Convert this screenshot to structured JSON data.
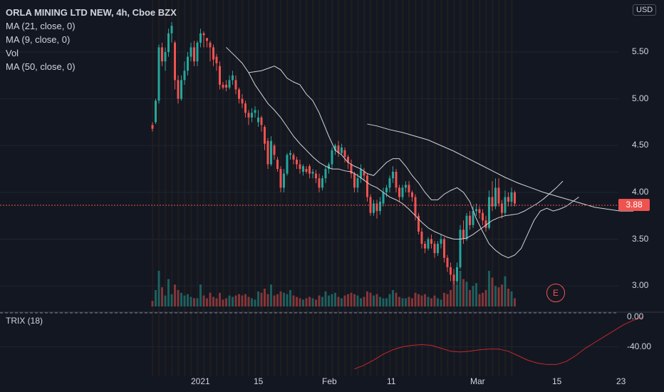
{
  "header": {
    "symbol_title": "ORLA MINING LTD NEW, 4h, Cboe BZX",
    "currency": "USD"
  },
  "legend": {
    "ma21": "MA (21, close, 0)",
    "ma9": "MA (9, close, 0)",
    "vol": "Vol",
    "ma50": "MA (50, close, 0)"
  },
  "trix": {
    "label": "TRIX (18)"
  },
  "last_price": {
    "label": "3.88",
    "color": "#ef5350"
  },
  "earnings_badge": {
    "label": "E"
  },
  "colors": {
    "up": "#26a69a",
    "down": "#ef5350",
    "ma": "#d1d4dc",
    "trix": "#c62828",
    "background": "#131722"
  },
  "chart_data": {
    "type": "candlestick",
    "price_axis": {
      "ticks": [
        "5.50",
        "5.00",
        "4.50",
        "4.00",
        "3.50",
        "3.00"
      ],
      "range": [
        2.78,
        5.98
      ]
    },
    "trix_axis": {
      "ticks": [
        "0.00",
        "-40.00"
      ],
      "range": [
        -80,
        5
      ]
    },
    "time_axis": {
      "ticks": [
        "2021",
        "15",
        "Feb",
        "11",
        "Mar",
        "15",
        "23"
      ]
    },
    "candles": [
      [
        4.72,
        4.68,
        4.65,
        4.75,
        40
      ],
      [
        4.75,
        4.98,
        4.73,
        5.0,
        120
      ],
      [
        4.98,
        5.55,
        4.95,
        5.58,
        260
      ],
      [
        5.55,
        5.4,
        5.35,
        5.6,
        140
      ],
      [
        5.4,
        5.5,
        5.3,
        5.55,
        80
      ],
      [
        5.5,
        5.7,
        5.45,
        5.75,
        200
      ],
      [
        5.7,
        5.78,
        5.6,
        5.82,
        90
      ],
      [
        5.6,
        5.2,
        5.1,
        5.62,
        160
      ],
      [
        5.2,
        5.0,
        4.95,
        5.25,
        120
      ],
      [
        5.0,
        5.2,
        4.98,
        5.25,
        100
      ],
      [
        5.2,
        5.3,
        5.15,
        5.4,
        80
      ],
      [
        5.3,
        5.45,
        5.25,
        5.5,
        90
      ],
      [
        5.45,
        5.55,
        5.4,
        5.6,
        70
      ],
      [
        5.55,
        5.4,
        5.35,
        5.62,
        60
      ],
      [
        5.4,
        5.6,
        5.35,
        5.62,
        60
      ],
      [
        5.6,
        5.7,
        5.55,
        5.75,
        160
      ],
      [
        5.7,
        5.68,
        5.55,
        5.72,
        80
      ],
      [
        5.65,
        5.62,
        5.55,
        5.65,
        60
      ],
      [
        5.6,
        5.55,
        5.4,
        5.62,
        100
      ],
      [
        5.55,
        5.42,
        5.35,
        5.58,
        70
      ],
      [
        5.45,
        5.38,
        5.3,
        5.48,
        60
      ],
      [
        5.35,
        5.15,
        5.1,
        5.4,
        100
      ],
      [
        5.15,
        5.12,
        5.1,
        5.18,
        50
      ],
      [
        5.15,
        5.12,
        5.08,
        5.2,
        60
      ],
      [
        5.12,
        5.2,
        5.1,
        5.25,
        80
      ],
      [
        5.2,
        5.25,
        5.15,
        5.3,
        70
      ],
      [
        5.2,
        5.1,
        5.05,
        5.25,
        80
      ],
      [
        5.1,
        5.0,
        4.95,
        5.12,
        90
      ],
      [
        5.0,
        4.95,
        4.9,
        5.05,
        80
      ],
      [
        4.95,
        4.85,
        4.8,
        4.98,
        90
      ],
      [
        4.85,
        4.8,
        4.72,
        4.88,
        70
      ],
      [
        4.8,
        4.85,
        4.75,
        4.9,
        60
      ],
      [
        4.85,
        4.88,
        4.8,
        4.92,
        50
      ],
      [
        4.75,
        4.8,
        4.7,
        4.88,
        110
      ],
      [
        4.8,
        4.72,
        4.65,
        4.82,
        100
      ],
      [
        4.7,
        4.52,
        4.45,
        4.72,
        130
      ],
      [
        4.55,
        4.3,
        4.25,
        4.58,
        90
      ],
      [
        4.3,
        4.55,
        4.28,
        4.6,
        160
      ],
      [
        4.5,
        4.4,
        4.35,
        4.52,
        80
      ],
      [
        4.35,
        4.25,
        4.22,
        4.38,
        90
      ],
      [
        4.25,
        4.05,
        4.0,
        4.28,
        110
      ],
      [
        4.05,
        4.2,
        4.0,
        4.25,
        100
      ],
      [
        4.2,
        4.4,
        4.18,
        4.42,
        90
      ],
      [
        4.4,
        4.42,
        4.35,
        4.45,
        120
      ],
      [
        4.4,
        4.35,
        4.3,
        4.42,
        80
      ],
      [
        4.35,
        4.3,
        4.25,
        4.38,
        70
      ],
      [
        4.3,
        4.25,
        4.2,
        4.35,
        60
      ],
      [
        4.22,
        4.28,
        4.18,
        4.3,
        50
      ],
      [
        4.25,
        4.22,
        4.2,
        4.28,
        60
      ],
      [
        4.28,
        4.2,
        4.15,
        4.3,
        70
      ],
      [
        4.2,
        4.22,
        4.15,
        4.25,
        60
      ],
      [
        4.2,
        4.15,
        4.1,
        4.24,
        50
      ],
      [
        4.15,
        4.05,
        4.0,
        4.2,
        80
      ],
      [
        4.05,
        4.15,
        4.02,
        4.18,
        70
      ],
      [
        4.15,
        4.25,
        4.1,
        4.28,
        110
      ],
      [
        4.25,
        4.3,
        4.2,
        4.32,
        80
      ],
      [
        4.3,
        4.45,
        4.25,
        4.48,
        90
      ],
      [
        4.45,
        4.5,
        4.4,
        4.52,
        100
      ],
      [
        4.5,
        4.42,
        4.38,
        4.55,
        70
      ],
      [
        4.42,
        4.48,
        4.4,
        4.52,
        60
      ],
      [
        4.45,
        4.38,
        4.32,
        4.48,
        80
      ],
      [
        4.38,
        4.32,
        4.25,
        4.4,
        90
      ],
      [
        4.3,
        4.2,
        4.15,
        4.35,
        100
      ],
      [
        4.2,
        4.05,
        4.0,
        4.22,
        90
      ],
      [
        4.05,
        4.15,
        4.0,
        4.2,
        80
      ],
      [
        4.15,
        4.25,
        4.1,
        4.3,
        60
      ],
      [
        4.22,
        4.18,
        4.12,
        4.26,
        70
      ],
      [
        4.18,
        3.95,
        3.9,
        4.2,
        110
      ],
      [
        3.95,
        3.78,
        3.75,
        3.98,
        100
      ],
      [
        3.78,
        3.88,
        3.75,
        3.92,
        80
      ],
      [
        3.88,
        3.8,
        3.72,
        3.92,
        90
      ],
      [
        3.8,
        3.9,
        3.76,
        3.95,
        70
      ],
      [
        3.88,
        4.0,
        3.85,
        4.05,
        60
      ],
      [
        4.0,
        4.05,
        3.95,
        4.08,
        60
      ],
      [
        4.05,
        4.15,
        4.0,
        4.18,
        90
      ],
      [
        4.15,
        4.22,
        4.1,
        4.28,
        120
      ],
      [
        4.22,
        4.05,
        4.0,
        4.25,
        100
      ],
      [
        4.05,
        3.95,
        3.9,
        4.08,
        70
      ],
      [
        3.95,
        4.05,
        3.92,
        4.08,
        60
      ],
      [
        4.05,
        4.08,
        4.0,
        4.12,
        60
      ],
      [
        4.08,
        4.0,
        3.95,
        4.12,
        70
      ],
      [
        4.0,
        3.95,
        3.9,
        4.02,
        60
      ],
      [
        3.95,
        3.75,
        3.7,
        3.98,
        100
      ],
      [
        3.75,
        3.58,
        3.55,
        3.78,
        90
      ],
      [
        3.58,
        3.45,
        3.4,
        3.62,
        80
      ],
      [
        3.45,
        3.4,
        3.35,
        3.48,
        90
      ],
      [
        3.4,
        3.5,
        3.38,
        3.52,
        70
      ],
      [
        3.5,
        3.45,
        3.4,
        3.55,
        60
      ],
      [
        3.45,
        3.35,
        3.3,
        3.48,
        80
      ],
      [
        3.35,
        3.45,
        3.32,
        3.48,
        60
      ],
      [
        3.45,
        3.5,
        3.4,
        3.55,
        50
      ],
      [
        3.5,
        3.3,
        3.25,
        3.52,
        100
      ],
      [
        3.3,
        3.2,
        3.15,
        3.33,
        90
      ],
      [
        3.2,
        3.12,
        3.05,
        3.25,
        120
      ],
      [
        3.12,
        3.05,
        3.02,
        3.18,
        180
      ],
      [
        3.05,
        3.2,
        3.02,
        3.25,
        160
      ],
      [
        3.2,
        3.6,
        3.18,
        3.65,
        260
      ],
      [
        3.6,
        3.5,
        3.45,
        3.7,
        200
      ],
      [
        3.5,
        3.75,
        3.48,
        3.78,
        180
      ],
      [
        3.75,
        3.65,
        3.6,
        3.8,
        120
      ],
      [
        3.65,
        3.8,
        3.62,
        3.85,
        150
      ],
      [
        3.8,
        3.82,
        3.75,
        3.88,
        170
      ],
      [
        3.82,
        3.78,
        3.72,
        3.85,
        90
      ],
      [
        3.78,
        3.7,
        3.65,
        3.82,
        100
      ],
      [
        3.7,
        3.62,
        3.58,
        3.75,
        120
      ],
      [
        3.62,
        3.95,
        3.6,
        4.02,
        260
      ],
      [
        3.95,
        3.85,
        3.8,
        4.12,
        210
      ],
      [
        3.85,
        4.05,
        3.82,
        4.15,
        150
      ],
      [
        4.05,
        3.88,
        3.85,
        4.15,
        140
      ],
      [
        3.88,
        3.78,
        3.72,
        3.92,
        160
      ],
      [
        3.78,
        3.95,
        3.75,
        4.02,
        220
      ],
      [
        3.95,
        3.9,
        3.85,
        4.0,
        130
      ],
      [
        3.9,
        4.0,
        3.85,
        4.05,
        110
      ],
      [
        4.0,
        3.88,
        3.85,
        4.02,
        60
      ]
    ],
    "ma9": [
      [
        30,
        5.28
      ],
      [
        34,
        5.3
      ],
      [
        38,
        5.35
      ],
      [
        40,
        5.31
      ],
      [
        42,
        5.22
      ],
      [
        44,
        5.18
      ],
      [
        46,
        5.15
      ],
      [
        48,
        5.05
      ],
      [
        50,
        4.98
      ],
      [
        52,
        4.85
      ],
      [
        55,
        4.6
      ],
      [
        57,
        4.45
      ],
      [
        59,
        4.4
      ],
      [
        61,
        4.32
      ],
      [
        63,
        4.28
      ],
      [
        65,
        4.25
      ],
      [
        67,
        4.2
      ],
      [
        69,
        4.18
      ],
      [
        71,
        4.25
      ],
      [
        73,
        4.32
      ],
      [
        75,
        4.36
      ],
      [
        77,
        4.36
      ],
      [
        79,
        4.28
      ],
      [
        81,
        4.18
      ],
      [
        83,
        4.1
      ],
      [
        85,
        4.0
      ],
      [
        87,
        3.92
      ],
      [
        89,
        3.92
      ],
      [
        91,
        3.98
      ],
      [
        93,
        4.02
      ],
      [
        95,
        4.05
      ],
      [
        97,
        4.0
      ],
      [
        99,
        3.9
      ],
      [
        101,
        3.72
      ],
      [
        103,
        3.58
      ],
      [
        105,
        3.45
      ],
      [
        107,
        3.38
      ],
      [
        109,
        3.33
      ],
      [
        111,
        3.3
      ],
      [
        113,
        3.33
      ],
      [
        115,
        3.4
      ],
      [
        117,
        3.55
      ],
      [
        119,
        3.7
      ],
      [
        121,
        3.8
      ],
      [
        123,
        3.83
      ],
      [
        125,
        3.8
      ],
      [
        127,
        3.82
      ],
      [
        129,
        3.85
      ],
      [
        131,
        3.9
      ],
      [
        133,
        3.95
      ]
    ],
    "ma21": [
      [
        23,
        5.55
      ],
      [
        26,
        5.45
      ],
      [
        28,
        5.38
      ],
      [
        30,
        5.28
      ],
      [
        32,
        5.15
      ],
      [
        34,
        5.05
      ],
      [
        36,
        4.95
      ],
      [
        38,
        4.88
      ],
      [
        40,
        4.8
      ],
      [
        42,
        4.7
      ],
      [
        44,
        4.6
      ],
      [
        46,
        4.52
      ],
      [
        48,
        4.45
      ],
      [
        50,
        4.38
      ],
      [
        52,
        4.32
      ],
      [
        54,
        4.28
      ],
      [
        56,
        4.25
      ],
      [
        58,
        4.25
      ],
      [
        60,
        4.23
      ],
      [
        62,
        4.22
      ],
      [
        64,
        4.18
      ],
      [
        66,
        4.13
      ],
      [
        68,
        4.08
      ],
      [
        70,
        4.05
      ],
      [
        72,
        4.0
      ],
      [
        74,
        3.95
      ],
      [
        76,
        3.92
      ],
      [
        78,
        3.88
      ],
      [
        80,
        3.82
      ],
      [
        82,
        3.75
      ],
      [
        84,
        3.68
      ],
      [
        86,
        3.62
      ],
      [
        88,
        3.58
      ],
      [
        90,
        3.55
      ],
      [
        92,
        3.52
      ],
      [
        94,
        3.5
      ],
      [
        96,
        3.5
      ],
      [
        98,
        3.51
      ],
      [
        100,
        3.55
      ],
      [
        102,
        3.6
      ],
      [
        104,
        3.65
      ],
      [
        106,
        3.7
      ],
      [
        108,
        3.73
      ],
      [
        110,
        3.75
      ],
      [
        112,
        3.76
      ],
      [
        114,
        3.77
      ],
      [
        116,
        3.8
      ],
      [
        118,
        3.84
      ],
      [
        120,
        3.88
      ],
      [
        122,
        3.93
      ],
      [
        124,
        3.99
      ],
      [
        126,
        4.05
      ],
      [
        128,
        4.12
      ]
    ],
    "ma50": [
      [
        67,
        4.73
      ],
      [
        70,
        4.71
      ],
      [
        74,
        4.67
      ],
      [
        78,
        4.64
      ],
      [
        82,
        4.6
      ],
      [
        86,
        4.56
      ],
      [
        90,
        4.5
      ],
      [
        94,
        4.44
      ],
      [
        98,
        4.37
      ],
      [
        102,
        4.3
      ],
      [
        106,
        4.23
      ],
      [
        110,
        4.16
      ],
      [
        114,
        4.1
      ],
      [
        118,
        4.05
      ],
      [
        122,
        4.0
      ],
      [
        126,
        3.96
      ],
      [
        130,
        3.92
      ],
      [
        134,
        3.88
      ],
      [
        138,
        3.84
      ],
      [
        142,
        3.82
      ],
      [
        146,
        3.8
      ],
      [
        150,
        3.8
      ]
    ],
    "trix_series": [
      [
        63,
        -70
      ],
      [
        66,
        -65
      ],
      [
        69,
        -58
      ],
      [
        72,
        -50
      ],
      [
        75,
        -44
      ],
      [
        78,
        -40
      ],
      [
        81,
        -38
      ],
      [
        84,
        -37
      ],
      [
        87,
        -38
      ],
      [
        90,
        -42
      ],
      [
        93,
        -46
      ],
      [
        96,
        -47
      ],
      [
        99,
        -46
      ],
      [
        102,
        -44
      ],
      [
        105,
        -43
      ],
      [
        108,
        -43
      ],
      [
        111,
        -46
      ],
      [
        114,
        -52
      ],
      [
        117,
        -58
      ],
      [
        120,
        -62
      ],
      [
        123,
        -64
      ],
      [
        126,
        -64
      ],
      [
        129,
        -60
      ],
      [
        132,
        -52
      ],
      [
        135,
        -42
      ],
      [
        138,
        -34
      ],
      [
        141,
        -26
      ],
      [
        144,
        -18
      ],
      [
        147,
        -10
      ],
      [
        150,
        -4
      ],
      [
        153,
        0
      ]
    ]
  }
}
